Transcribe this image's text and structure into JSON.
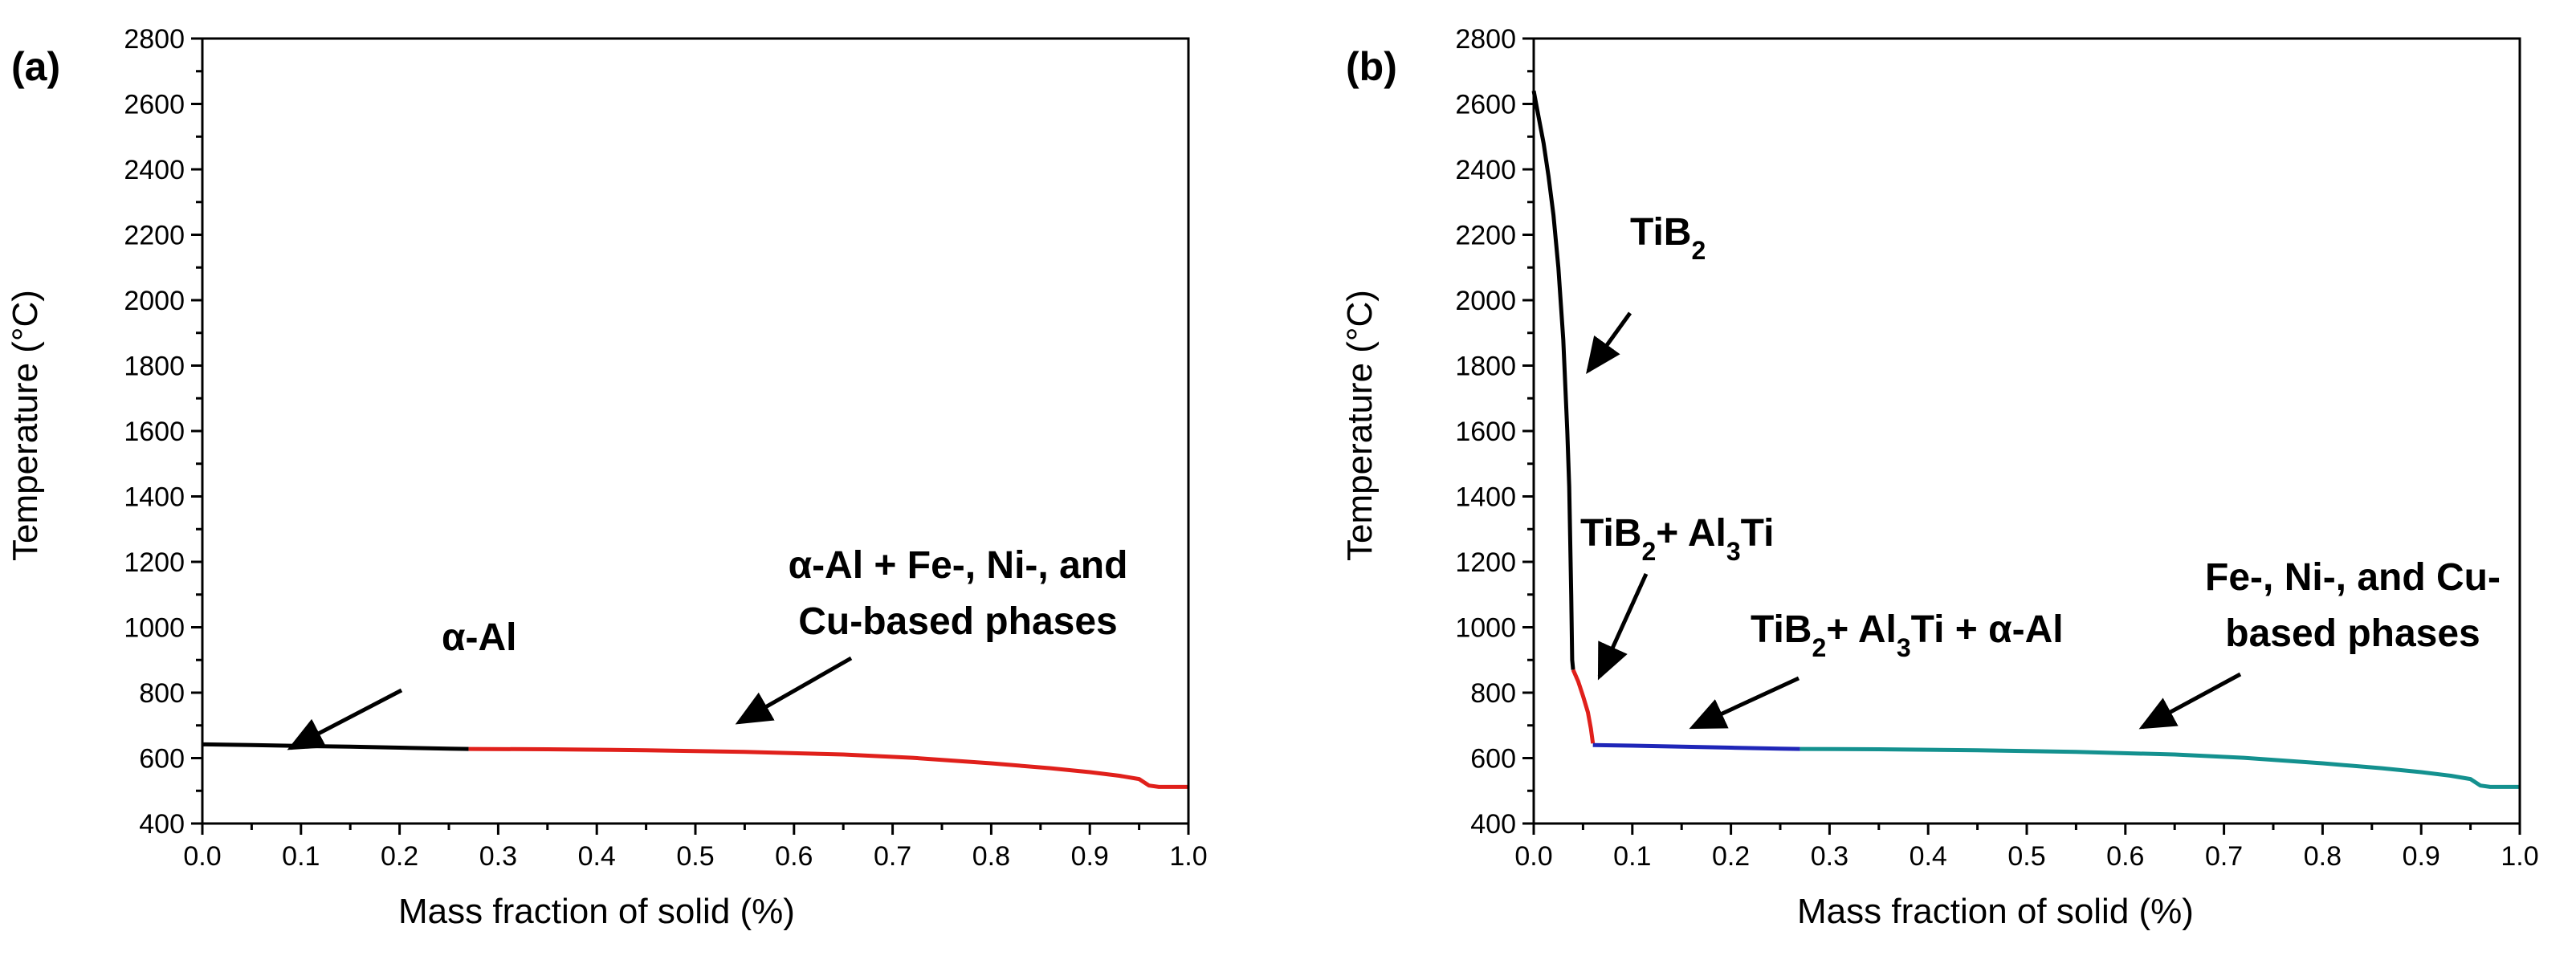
{
  "chart_data": [
    {
      "type": "line",
      "panel_label": "(a)",
      "xlabel": "Mass fraction of solid (%)",
      "ylabel": "Temperature (°C)",
      "xlim": [
        0.0,
        1.0
      ],
      "ylim": [
        400,
        2800
      ],
      "xticks": [
        "0.0",
        "0.1",
        "0.2",
        "0.3",
        "0.4",
        "0.5",
        "0.6",
        "0.7",
        "0.8",
        "0.9",
        "1.0"
      ],
      "yticks": [
        "400",
        "600",
        "800",
        "1000",
        "1200",
        "1400",
        "1600",
        "1800",
        "2000",
        "2200",
        "2400",
        "2600",
        "2800"
      ],
      "grid": false,
      "series": [
        {
          "color": "#000000",
          "x": [
            0.0,
            0.05,
            0.1,
            0.15,
            0.2,
            0.25,
            0.27
          ],
          "y": [
            642,
            640,
            637,
            635,
            632,
            629,
            628
          ]
        },
        {
          "color": "#e0201b",
          "x": [
            0.27,
            0.35,
            0.45,
            0.55,
            0.65,
            0.72,
            0.8,
            0.86,
            0.9,
            0.93,
            0.95,
            0.96,
            0.97,
            1.0
          ],
          "y": [
            628,
            627,
            624,
            619,
            611,
            601,
            584,
            569,
            557,
            546,
            536,
            516,
            512,
            512
          ]
        }
      ],
      "annotations": [
        {
          "text": "α-Al",
          "arrow_to": [
            0.09,
            698
          ]
        },
        {
          "lines": [
            "α-Al + Fe-, Ni-, and",
            "Cu-based phases"
          ],
          "arrow_to": [
            0.54,
            698
          ]
        }
      ]
    },
    {
      "type": "line",
      "panel_label": "(b)",
      "xlabel": "Mass fraction of solid (%)",
      "ylabel": "Temperature (°C)",
      "xlim": [
        0.0,
        1.0
      ],
      "ylim": [
        400,
        2800
      ],
      "xticks": [
        "0.0",
        "0.1",
        "0.2",
        "0.3",
        "0.4",
        "0.5",
        "0.6",
        "0.7",
        "0.8",
        "0.9",
        "1.0"
      ],
      "yticks": [
        "400",
        "600",
        "800",
        "1000",
        "1200",
        "1400",
        "1600",
        "1800",
        "2000",
        "2200",
        "2400",
        "2600",
        "2800"
      ],
      "grid": false,
      "series": [
        {
          "color": "#000000",
          "x": [
            0.0,
            0.005,
            0.01,
            0.015,
            0.02,
            0.025,
            0.03,
            0.034,
            0.036,
            0.038,
            0.039,
            0.04
          ],
          "y": [
            2640,
            2560,
            2480,
            2380,
            2260,
            2100,
            1880,
            1600,
            1430,
            1100,
            900,
            870
          ]
        },
        {
          "color": "#e0201b",
          "x": [
            0.04,
            0.045,
            0.05,
            0.055,
            0.058,
            0.06
          ],
          "y": [
            870,
            835,
            790,
            740,
            690,
            645
          ]
        },
        {
          "color": "#1f26b8",
          "x": [
            0.06,
            0.1,
            0.15,
            0.2,
            0.25,
            0.27
          ],
          "y": [
            640,
            638,
            635,
            632,
            629,
            628
          ]
        },
        {
          "color": "#14918f",
          "x": [
            0.27,
            0.35,
            0.45,
            0.55,
            0.65,
            0.72,
            0.8,
            0.86,
            0.9,
            0.93,
            0.95,
            0.96,
            0.97,
            1.0
          ],
          "y": [
            628,
            627,
            624,
            619,
            611,
            601,
            584,
            569,
            557,
            546,
            536,
            516,
            512,
            512
          ]
        }
      ],
      "annotations": [
        {
          "text": "TiB",
          "sub": "2",
          "arrow_to": [
            0.035,
            1830
          ]
        },
        {
          "text": "TiB",
          "sub": "2",
          "text2": "+ Al",
          "sub2": "3",
          "text3": "Ti",
          "arrow_to": [
            0.045,
            840
          ]
        },
        {
          "text": "TiB",
          "sub": "2",
          "text2": "+ Al",
          "sub2": "3",
          "text3": "Ti + α-Al",
          "arrow_to": [
            0.16,
            680
          ]
        },
        {
          "lines": [
            "Fe-, Ni-, and Cu-",
            "based phases"
          ],
          "arrow_to": [
            0.6,
            680
          ]
        }
      ]
    }
  ]
}
